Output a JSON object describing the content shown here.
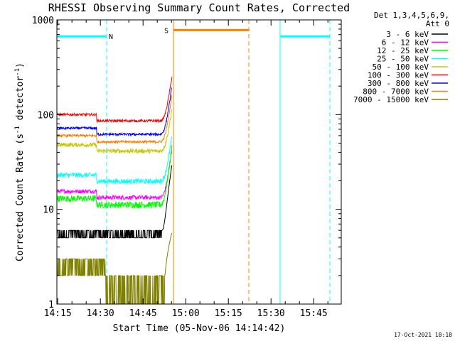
{
  "chart_data": {
    "type": "line",
    "title": "RHESSI Observing Summary Count Rates, Corrected",
    "xlabel": "Start Time (05-Nov-06 14:14:42)",
    "ylabel_main": "Corrected Count Rate (s",
    "ylabel_sup1": "-1",
    "ylabel_mid": " detector",
    "ylabel_sup2": "-1",
    "ylabel_end": ")",
    "y_scale": "log",
    "ylim": [
      1,
      1000
    ],
    "xlim_minutes": [
      0,
      100
    ],
    "x_ticks": [
      "14:15",
      "14:30",
      "14:45",
      "15:00",
      "15:15",
      "15:30",
      "15:45"
    ],
    "y_ticks": [
      "1",
      "10",
      "100",
      "1000"
    ],
    "legend_header_1": "Det 1,3,4,5,6,9,",
    "legend_header_2": "Att 0",
    "timestamp": "17-Oct-2021 18:18",
    "series": [
      {
        "name": "3 - 6 keV",
        "color": "#000000",
        "base": 5.5,
        "noise": 0.1,
        "peak": 30
      },
      {
        "name": "6 - 12 keV",
        "color": "#ff00ff",
        "base": 15.5,
        "noise": 0.05,
        "peak": 30
      },
      {
        "name": "12 - 25 keV",
        "color": "#00ff00",
        "base": 13,
        "noise": 0.08,
        "peak": 35
      },
      {
        "name": "25 - 50 keV",
        "color": "#00ffff",
        "base": 23,
        "noise": 0.06,
        "peak": 40
      },
      {
        "name": "50 - 100 keV",
        "color": "#c8c800",
        "base": 48,
        "noise": 0.05,
        "peak": 75
      },
      {
        "name": "100 - 300 keV",
        "color": "#ff0000",
        "base": 100,
        "noise": 0.03,
        "peak": 170
      },
      {
        "name": "300 - 800 keV",
        "color": "#0000ff",
        "base": 72,
        "noise": 0.03,
        "peak": 140
      },
      {
        "name": "800 - 7000 keV",
        "color": "#ff8000",
        "base": 60,
        "noise": 0.03,
        "peak": 110
      },
      {
        "name": "7000 - 15000 keV",
        "color": "#808000",
        "base": 2.5,
        "noise": 0.2,
        "peak": 10
      }
    ],
    "flag_bars": [
      {
        "label": "N",
        "color": "#00ffff",
        "start_min": 0,
        "end_min": 17.5,
        "y": 670,
        "label_min": 19
      },
      {
        "label": "",
        "color": "#00ffff",
        "start_min": 78.5,
        "end_min": 96,
        "y": 670,
        "label_min": 0
      },
      {
        "label": "S",
        "color": "#ff8000",
        "start_min": 41,
        "end_min": 67.5,
        "y": 780,
        "label_min": 38.5
      }
    ],
    "vertical_lines": [
      {
        "color": "#00ffff",
        "t_min": 17.5,
        "style": "dashed"
      },
      {
        "color": "#ff8000",
        "t_min": 41,
        "style": "solid"
      },
      {
        "color": "#ff8000",
        "t_min": 67.5,
        "style": "dashed"
      },
      {
        "color": "#00ffff",
        "t_min": 78.5,
        "style": "solid"
      },
      {
        "color": "#00ffff",
        "t_min": 96,
        "style": "dashed"
      }
    ],
    "data_end_min": 40.5
  }
}
